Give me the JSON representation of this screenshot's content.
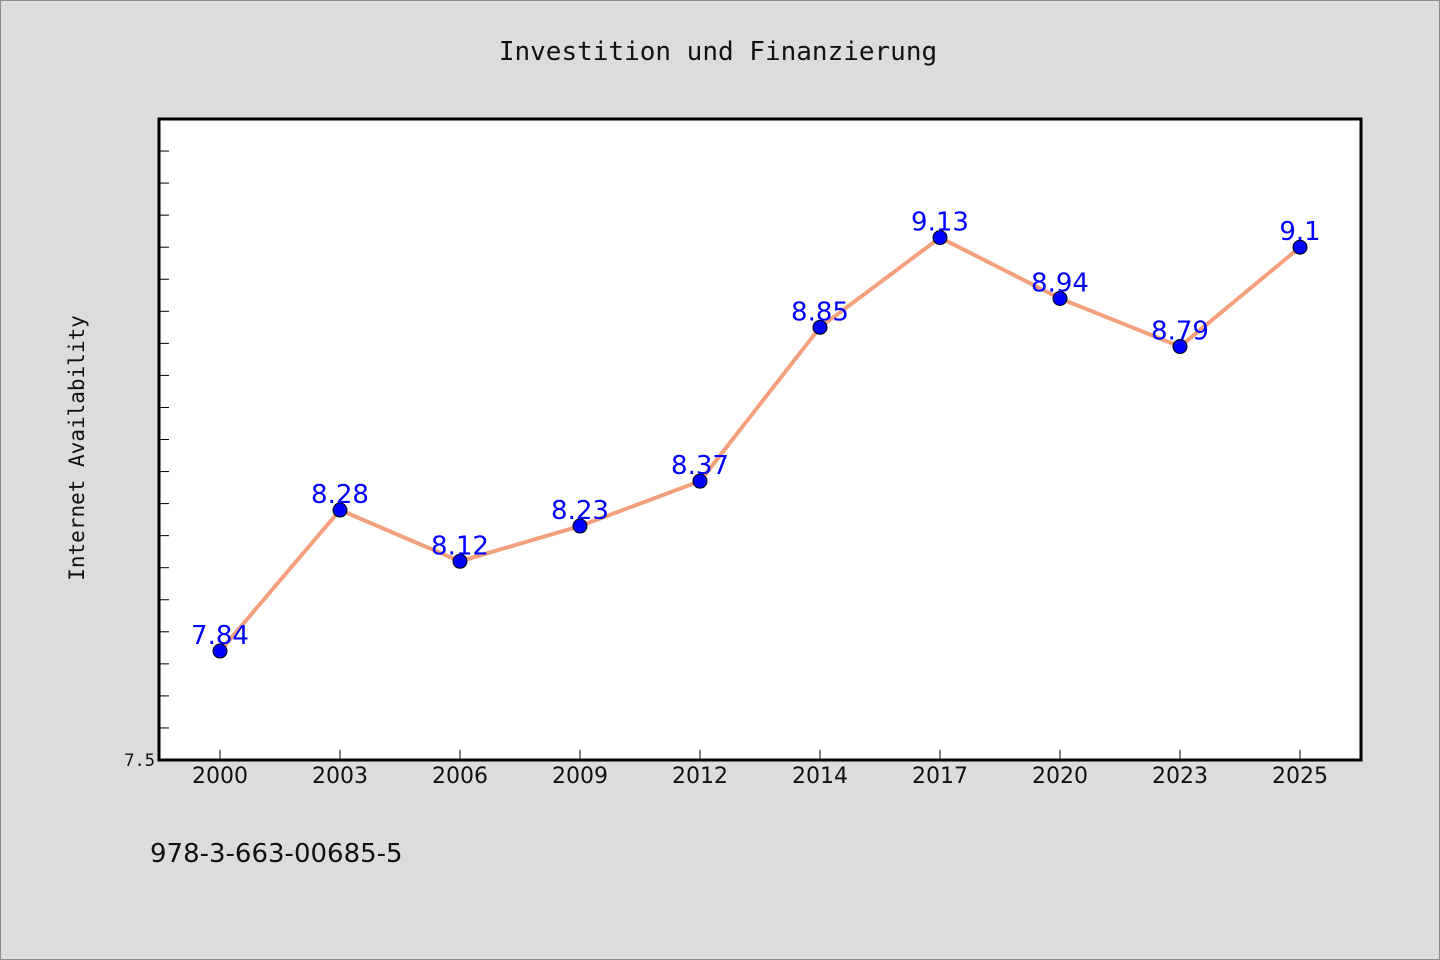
{
  "chart_data": {
    "type": "line",
    "title": "Investition und Finanzierung",
    "xlabel": "",
    "ylabel": "Internet Availability",
    "categories": [
      "2000",
      "2003",
      "2006",
      "2009",
      "2012",
      "2014",
      "2017",
      "2020",
      "2023",
      "2025"
    ],
    "series": [
      {
        "values": [
          7.84,
          8.28,
          8.12,
          8.23,
          8.37,
          8.85,
          9.13,
          8.94,
          8.79,
          9.1
        ],
        "data_labels": [
          "7.84",
          "8.28",
          "8.12",
          "8.23",
          "8.37",
          "8.85",
          "9.13",
          "8.94",
          "8.79",
          "9.1"
        ]
      }
    ],
    "ylim": [
      7.5,
      9.5
    ],
    "yticks": [
      7.5
    ],
    "ytick_labels": [
      "7.5"
    ],
    "grid": false,
    "line_color": "#f4a07c",
    "marker_color": "#0000ff",
    "label_color": "#0000ff"
  },
  "footnote": "978-3-663-00685-5"
}
